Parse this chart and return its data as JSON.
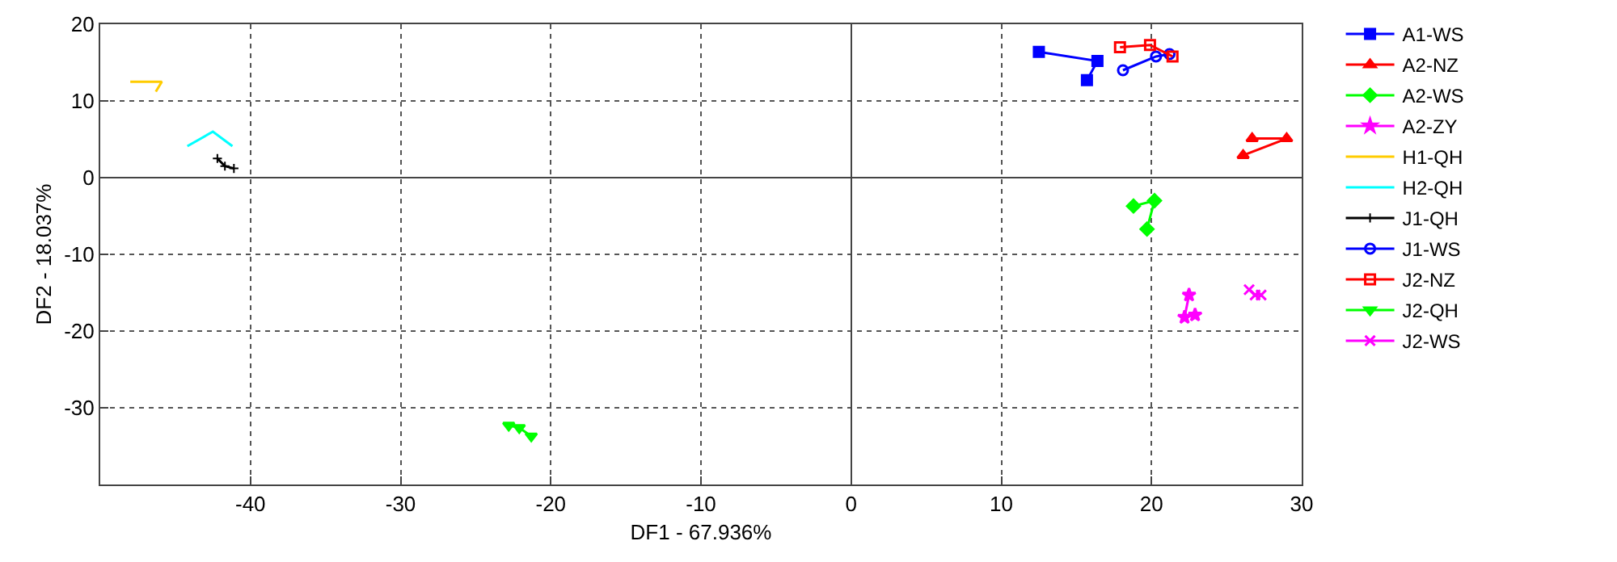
{
  "chart_data": {
    "type": "line",
    "xlabel": "DF1 - 67.936%",
    "ylabel": "DF2 - 18.037%",
    "xlim": [
      -50,
      30
    ],
    "ylim": [
      -40,
      20
    ],
    "xticks": [
      -40,
      -30,
      -20,
      -10,
      0,
      10,
      20,
      30
    ],
    "yticks": [
      -30,
      -20,
      -10,
      0,
      10,
      20
    ],
    "grid": true,
    "legend": "right",
    "series": [
      {
        "name": "A1-WS",
        "color": "#0000ff",
        "marker": "square",
        "x": [
          12.5,
          16.4,
          15.7
        ],
        "values": [
          16.4,
          15.2,
          12.7
        ]
      },
      {
        "name": "A2-NZ",
        "color": "#ff0000",
        "marker": "triangle",
        "x": [
          26.7,
          29.0,
          26.1
        ],
        "values": [
          5.1,
          5.1,
          2.9
        ]
      },
      {
        "name": "A2-WS",
        "color": "#00ff00",
        "marker": "diamond",
        "x": [
          18.8,
          20.2,
          19.7
        ],
        "values": [
          -3.7,
          -3.0,
          -6.7
        ]
      },
      {
        "name": "A2-ZY",
        "color": "#ff00ff",
        "marker": "star",
        "x": [
          22.5,
          22.2,
          22.9
        ],
        "values": [
          -15.3,
          -18.2,
          -17.9
        ]
      },
      {
        "name": "H1-QH",
        "color": "#ffcc00",
        "marker": "none",
        "x": [
          -48.0,
          -45.9,
          -46.3
        ],
        "values": [
          12.5,
          12.5,
          11.2
        ]
      },
      {
        "name": "H2-QH",
        "color": "#00ffff",
        "marker": "none",
        "x": [
          -44.2,
          -42.5,
          -41.2
        ],
        "values": [
          4.1,
          6.0,
          4.1
        ]
      },
      {
        "name": "J1-QH",
        "color": "#000000",
        "marker": "cross",
        "x": [
          -42.2,
          -41.7,
          -41.1
        ],
        "values": [
          2.5,
          1.5,
          1.2
        ]
      },
      {
        "name": "J1-WS",
        "color": "#0000ff",
        "marker": "circle-open",
        "x": [
          18.1,
          20.3,
          21.2
        ],
        "values": [
          14.0,
          15.8,
          16.1
        ]
      },
      {
        "name": "J2-NZ",
        "color": "#ff0000",
        "marker": "square-open",
        "x": [
          17.9,
          19.9,
          21.4
        ],
        "values": [
          17.0,
          17.3,
          15.8
        ]
      },
      {
        "name": "J2-QH",
        "color": "#00ff00",
        "marker": "triangle-down",
        "x": [
          -22.8,
          -22.1,
          -21.3
        ],
        "values": [
          -32.3,
          -32.6,
          -33.7
        ]
      },
      {
        "name": "J2-WS",
        "color": "#ff00ff",
        "marker": "x",
        "x": [
          26.5,
          26.9,
          27.3
        ],
        "values": [
          -14.6,
          -15.3,
          -15.3
        ]
      }
    ]
  }
}
